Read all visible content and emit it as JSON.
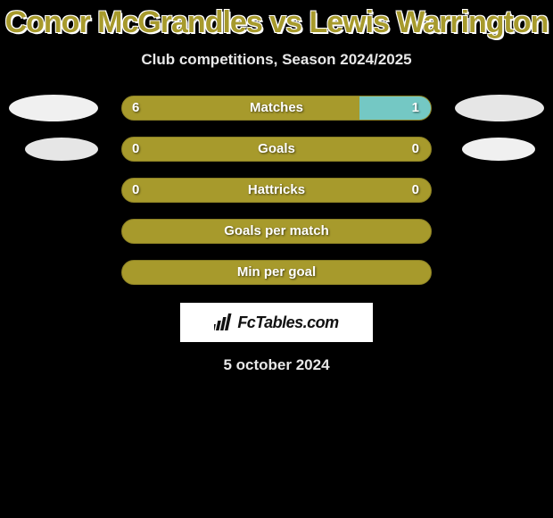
{
  "title": "Conor McGrandles vs Lewis Warrington",
  "subtitle": "Club competitions, Season 2024/2025",
  "date": "5 october 2024",
  "title_fontsize": 34,
  "subtitle_fontsize": 17,
  "date_fontsize": 17,
  "bar_label_fontsize": 15,
  "bar_value_fontsize": 15,
  "colors": {
    "background": "#000000",
    "title": "#a79a2c",
    "title_outline": "#ffffff",
    "text": "#e8e8e8",
    "bar_default": "#a79a2c",
    "bar_left_fill": "#a79a2c",
    "bar_right_fill": "#74c8c4",
    "bar_border": "#8a7f24",
    "badge_left_row1": "#f0f0f0",
    "badge_right_row1": "#e6e6e6",
    "badge_left_row2": "#e6e6e6",
    "badge_right_row2": "#f0f0f0",
    "logo_bg": "#ffffff",
    "logo_text": "#111111"
  },
  "bars": [
    {
      "label": "Matches",
      "left_val": "6",
      "right_val": "1",
      "left_pct": 77,
      "right_pct": 23,
      "show_badges": true
    },
    {
      "label": "Goals",
      "left_val": "0",
      "right_val": "0",
      "left_pct": 50,
      "right_pct": 50,
      "show_badges": true,
      "neutral": true
    },
    {
      "label": "Hattricks",
      "left_val": "0",
      "right_val": "0",
      "left_pct": 50,
      "right_pct": 50,
      "show_badges": false,
      "neutral": true
    },
    {
      "label": "Goals per match",
      "left_val": "",
      "right_val": "",
      "left_pct": 50,
      "right_pct": 50,
      "show_badges": false,
      "neutral": true
    },
    {
      "label": "Min per goal",
      "left_val": "",
      "right_val": "",
      "left_pct": 50,
      "right_pct": 50,
      "show_badges": false,
      "neutral": true
    }
  ],
  "logo": {
    "text": "FcTables.com",
    "icon": "chart-bars-icon"
  }
}
